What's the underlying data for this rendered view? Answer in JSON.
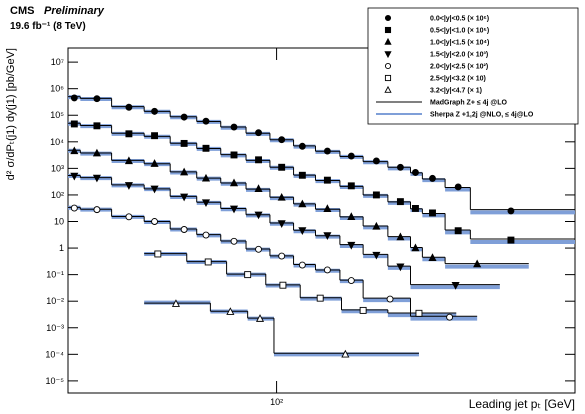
{
  "chart_data": {
    "type": "scatter",
    "header": "CMS",
    "subheader": "Preliminary",
    "luminosity": "19.6 fb⁻¹ (8 TeV)",
    "x_label": "Leading jet pₜ [GeV]",
    "y_label": "d² σ/dPₜ(j1) dy(j1) [pb/GeV]",
    "x_log": true,
    "y_log": true,
    "xlim": [
      20,
      1000
    ],
    "ylim": [
      3.5e-06,
      34000000.0
    ],
    "xticks": [
      {
        "value": 100,
        "label": "10²"
      }
    ],
    "yticks": [
      {
        "value": 10000000.0,
        "label": "10⁷"
      },
      {
        "value": 1000000.0,
        "label": "10⁶"
      },
      {
        "value": 100000.0,
        "label": "10⁵"
      },
      {
        "value": 10000.0,
        "label": "10⁴"
      },
      {
        "value": 1000.0,
        "label": "10³"
      },
      {
        "value": 100,
        "label": "10²"
      },
      10,
      1,
      {
        "value": 0.1,
        "label": "10⁻¹"
      },
      {
        "value": 0.01,
        "label": "10⁻²"
      },
      {
        "value": 0.001,
        "label": "10⁻³"
      },
      {
        "value": 0.0001,
        "label": "10⁻⁴"
      },
      {
        "value": 1e-05,
        "label": "10⁻⁵"
      }
    ],
    "legend": "upper right",
    "lines": [
      {
        "name": "MadGraph Z+ ≤ 4j @LO",
        "color": "#000000",
        "width": 1
      },
      {
        "name": "Sherpa Z +1,2j @NLO, ≤ 4j@LO",
        "color": "#7f9fd8",
        "width": 4
      }
    ],
    "series": [
      {
        "name": "0.0<|y|<0.5 (× 10⁶)",
        "marker": "circle",
        "filled": true,
        "color": "#000000",
        "x": [
          21,
          25,
          32,
          39,
          49,
          58,
          72,
          87,
          104,
          122,
          148,
          178,
          216,
          260,
          292,
          333,
          406,
          610
        ],
        "values": [
          450000,
          420000,
          200000,
          140000,
          85000,
          60000,
          36000,
          22000,
          12000,
          6800,
          4500,
          2900,
          1900,
          1100,
          700,
          420,
          200,
          25
        ],
        "bins": [
          20,
          22,
          28,
          36,
          44,
          54,
          65,
          79,
          95,
          114,
          135,
          163,
          195,
          236,
          281,
          308,
          367,
          446,
          1000
        ],
        "line_values": [
          [
            500000,
            430000,
            210000,
            140000,
            88000,
            58000,
            36000,
            21000,
            12000,
            7000,
            4400,
            2800,
            1800,
            1100,
            680,
            400,
            190,
            28
          ],
          [
            480000,
            410000,
            200000,
            135000,
            84000,
            56000,
            34000,
            20000,
            11500,
            6600,
            4200,
            2700,
            1700,
            1000,
            620,
            360,
            160,
            22
          ]
        ]
      },
      {
        "name": "0.5<|y|<1.0 (× 10⁵)",
        "marker": "square",
        "filled": true,
        "color": "#000000",
        "x": [
          21,
          25,
          32,
          39,
          49,
          58,
          72,
          87,
          104,
          122,
          148,
          178,
          216,
          260,
          292,
          333,
          406,
          610
        ],
        "values": [
          47000,
          40000,
          20000,
          17000,
          8700,
          5700,
          3200,
          2100,
          1100,
          550,
          360,
          220,
          100,
          56,
          31,
          21,
          4.5,
          2
        ],
        "bins": [
          20,
          22,
          28,
          36,
          44,
          54,
          65,
          79,
          95,
          114,
          135,
          163,
          195,
          236,
          281,
          308,
          367,
          446,
          1000
        ],
        "line_values": [
          [
            50000,
            41000,
            21000,
            16000,
            8800,
            5600,
            3300,
            2000,
            1100,
            560,
            350,
            210,
            100,
            55,
            30,
            20,
            4.8,
            2.2
          ],
          [
            48000,
            39000,
            20000,
            15500,
            8400,
            5400,
            3100,
            1900,
            1050,
            520,
            330,
            200,
            92,
            50,
            27,
            17,
            3.9,
            1.7
          ]
        ]
      },
      {
        "name": "1.0<|y|<1.5 (× 10⁴)",
        "marker": "triangle-up",
        "filled": true,
        "color": "#000000",
        "x": [
          21,
          25,
          32,
          39,
          49,
          58,
          72,
          87,
          104,
          122,
          148,
          178,
          216,
          260,
          292,
          333,
          470
        ],
        "values": [
          4500,
          3700,
          1900,
          1500,
          720,
          420,
          280,
          170,
          80,
          45,
          30,
          15,
          6.5,
          2.6,
          1,
          0.43,
          0.25
        ],
        "bins": [
          20,
          22,
          28,
          36,
          44,
          54,
          65,
          79,
          95,
          114,
          135,
          163,
          195,
          236,
          281,
          308,
          367,
          700
        ],
        "line_values": [
          [
            4800,
            3800,
            2000,
            1500,
            740,
            430,
            280,
            165,
            82,
            46,
            29,
            15,
            6.8,
            2.7,
            1.05,
            0.45,
            0.26
          ],
          [
            4600,
            3600,
            1900,
            1450,
            700,
            410,
            265,
            155,
            76,
            43,
            27,
            13.5,
            6,
            2.3,
            0.9,
            0.38,
            0.2
          ]
        ]
      },
      {
        "name": "1.5<|y|<2.0 (× 10³)",
        "marker": "triangle-down",
        "filled": true,
        "color": "#000000",
        "x": [
          21,
          25,
          32,
          39,
          49,
          58,
          72,
          87,
          104,
          122,
          148,
          178,
          216,
          260,
          398
        ],
        "values": [
          520,
          440,
          230,
          170,
          85,
          52,
          30,
          18,
          8.5,
          4.6,
          3,
          1.3,
          0.55,
          0.2,
          0.04
        ],
        "bins": [
          20,
          22,
          28,
          36,
          44,
          54,
          65,
          79,
          95,
          114,
          135,
          163,
          195,
          236,
          281,
          560
        ],
        "line_values": [
          [
            540,
            450,
            240,
            170,
            88,
            53,
            31,
            18,
            8.8,
            4.7,
            2.9,
            1.35,
            0.58,
            0.21,
            0.042
          ],
          [
            520,
            430,
            230,
            165,
            84,
            50,
            29,
            17,
            8.2,
            4.3,
            2.7,
            1.2,
            0.5,
            0.18,
            0.034
          ]
        ]
      },
      {
        "name": "2.0<|y|<2.5 (× 10²)",
        "marker": "circle",
        "filled": false,
        "color": "#000000",
        "x": [
          21,
          25,
          32,
          39,
          49,
          58,
          72,
          87,
          104,
          122,
          148,
          178,
          240,
          380
        ],
        "values": [
          32,
          28,
          15,
          10,
          5,
          3.1,
          1.8,
          0.9,
          0.5,
          0.23,
          0.15,
          0.06,
          0.012,
          0.0025
        ],
        "bins": [
          20,
          22,
          28,
          36,
          44,
          54,
          65,
          79,
          95,
          114,
          135,
          163,
          195,
          281,
          470
        ],
        "line_values": [
          [
            34,
            29,
            15.5,
            10,
            5.2,
            3.2,
            1.85,
            0.92,
            0.51,
            0.24,
            0.15,
            0.062,
            0.013,
            0.0027
          ],
          [
            33,
            28,
            15,
            9.6,
            5,
            3,
            1.75,
            0.87,
            0.48,
            0.22,
            0.14,
            0.057,
            0.011,
            0.0022
          ]
        ]
      },
      {
        "name": "2.5<|y|<3.2 (× 10)",
        "marker": "square",
        "filled": false,
        "color": "#000000",
        "x": [
          40,
          59,
          80,
          105,
          140,
          195,
          300
        ],
        "values": [
          0.6,
          0.3,
          0.1,
          0.04,
          0.013,
          0.0045,
          0.0035
        ],
        "bins": [
          36,
          50,
          68,
          92,
          120,
          165,
          236,
          400
        ],
        "line_values": [
          [
            0.62,
            0.31,
            0.105,
            0.041,
            0.0135,
            0.0047,
            0.0036
          ],
          [
            0.6,
            0.3,
            0.1,
            0.039,
            0.0125,
            0.0042,
            0.003
          ]
        ]
      },
      {
        "name": "3.2<|y|<4.7 (× 1)",
        "marker": "triangle-up",
        "filled": false,
        "color": "#000000",
        "x": [
          46,
          70,
          88,
          170
        ],
        "values": [
          0.008,
          0.004,
          0.0022,
          0.0001
        ],
        "bins": [
          36,
          60,
          80,
          98,
          300
        ],
        "line_values": [
          [
            0.0085,
            0.0042,
            0.0023,
            0.00011
          ],
          [
            0.0088,
            0.0041,
            0.0022,
            0.0001
          ]
        ]
      }
    ]
  }
}
